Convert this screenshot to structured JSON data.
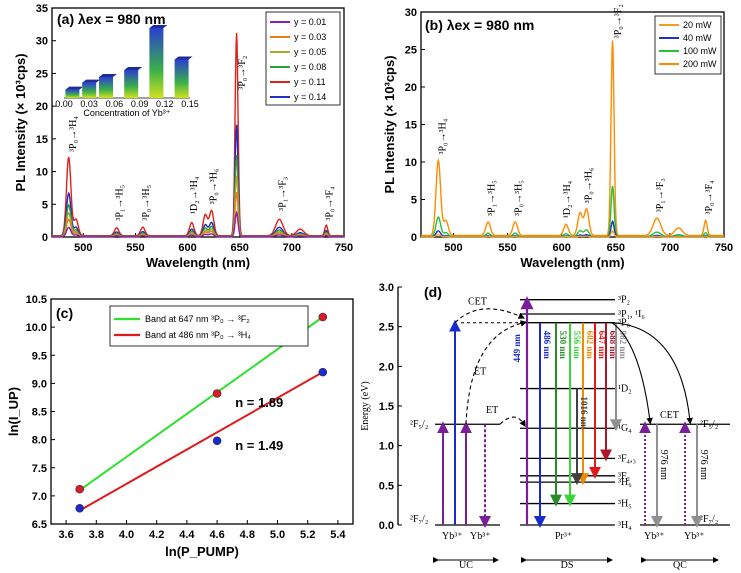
{
  "chart_data": [
    {
      "panel": "(a)",
      "type": "line",
      "title": "(a) λex = 980 nm",
      "xlabel": "Wavelength (nm)",
      "ylabel": "PL Intensity (× 10³cps)",
      "xlim": [
        470,
        750
      ],
      "ylim": [
        0,
        35
      ],
      "xticks": [
        500,
        550,
        600,
        650,
        700,
        750
      ],
      "yticks": [
        0,
        5,
        10,
        15,
        20,
        25,
        30,
        35
      ],
      "series": [
        {
          "name": "y = 0.01",
          "color": "#8b1fa9",
          "scale": 0.12
        },
        {
          "name": "y = 0.03",
          "color": "#e57f1d",
          "scale": 0.22
        },
        {
          "name": "y = 0.05",
          "color": "#a9a92a",
          "scale": 0.3
        },
        {
          "name": "y = 0.08",
          "color": "#2f9e3a",
          "scale": 0.4
        },
        {
          "name": "y = 0.11",
          "color": "#e0221c",
          "scale": 1.0
        },
        {
          "name": "y = 0.14",
          "color": "#1f2fbf",
          "scale": 0.55
        }
      ],
      "peaks": [
        {
          "center": 486,
          "height": 12.0,
          "width": 3
        },
        {
          "center": 493,
          "height": 2.5,
          "width": 3
        },
        {
          "center": 532,
          "height": 1.2,
          "width": 3
        },
        {
          "center": 557,
          "height": 1.3,
          "width": 3
        },
        {
          "center": 604,
          "height": 2.0,
          "width": 3
        },
        {
          "center": 617,
          "height": 3.2,
          "width": 3
        },
        {
          "center": 623,
          "height": 3.8,
          "width": 3
        },
        {
          "center": 647,
          "height": 31.0,
          "width": 2
        },
        {
          "center": 688,
          "height": 2.5,
          "width": 5
        },
        {
          "center": 708,
          "height": 1.0,
          "width": 5
        },
        {
          "center": 733,
          "height": 1.6,
          "width": 2
        }
      ],
      "annotations": [
        "³P₀→³H₄",
        "³P₁→³H₅",
        "³P₀→³H₅",
        "¹D₂→³H₄",
        "³P₀→³H₆",
        "³P₀→³F₂",
        "³P₁→³F₃",
        "³P₀→³F₄"
      ],
      "inset": {
        "type": "bar",
        "xlabel": "Concentration of Yb³⁺",
        "xticks": [
          "0.00",
          "0.03",
          "0.06",
          "0.09",
          "0.12",
          "0.15"
        ],
        "categories": [
          0.01,
          0.03,
          0.05,
          0.08,
          0.11,
          0.14
        ],
        "values": [
          0.12,
          0.22,
          0.3,
          0.4,
          1.0,
          0.55
        ]
      }
    },
    {
      "panel": "(b)",
      "type": "line",
      "title": "(b) λex = 980 nm",
      "xlabel": "Wavelength (nm)",
      "ylabel": "PL Intensity (× 10³cps)",
      "xlim": [
        470,
        750
      ],
      "ylim": [
        0,
        30
      ],
      "xticks": [
        500,
        550,
        600,
        650,
        700,
        750
      ],
      "yticks": [
        0,
        5,
        10,
        15,
        20,
        25,
        30
      ],
      "series": [
        {
          "name": "20 mW",
          "color": "#f0a020",
          "scale": 0.03
        },
        {
          "name": "40 mW",
          "color": "#2030c0",
          "scale": 0.08
        },
        {
          "name": "100 mW",
          "color": "#25c23a",
          "scale": 0.26
        },
        {
          "name": "200 mW",
          "color": "#ff8c00",
          "scale": 1.0
        }
      ],
      "peaks": [
        {
          "center": 486,
          "height": 10.0,
          "width": 3
        },
        {
          "center": 493,
          "height": 2.0,
          "width": 3
        },
        {
          "center": 532,
          "height": 1.8,
          "width": 3
        },
        {
          "center": 557,
          "height": 1.8,
          "width": 3
        },
        {
          "center": 604,
          "height": 1.5,
          "width": 3
        },
        {
          "center": 617,
          "height": 3.0,
          "width": 3
        },
        {
          "center": 623,
          "height": 3.5,
          "width": 3
        },
        {
          "center": 647,
          "height": 26.0,
          "width": 2
        },
        {
          "center": 688,
          "height": 2.3,
          "width": 5
        },
        {
          "center": 708,
          "height": 1.0,
          "width": 5
        },
        {
          "center": 733,
          "height": 2.0,
          "width": 2
        }
      ],
      "annotations": [
        "³P₀→³H₄",
        "³P₁→³H₅",
        "³P₀→³H₅",
        "¹D₂→³H₄",
        "³P₀→³H₆",
        "³P₀→³F₂",
        "³P₁→³F₃",
        "³P₀→³F₄"
      ]
    },
    {
      "panel": "(c)",
      "type": "scatter",
      "title": "(c)",
      "xlabel": "ln(P_PUMP)",
      "ylabel": "ln(I_UP)",
      "xlim": [
        3.5,
        5.5
      ],
      "ylim": [
        6.5,
        10.5
      ],
      "xticks": [
        "3.6",
        "3.8",
        "4.0",
        "4.2",
        "4.4",
        "4.6",
        "4.8",
        "5.0",
        "5.2",
        "5.4"
      ],
      "yticks": [
        "6.5",
        "7.0",
        "7.5",
        "8.0",
        "8.5",
        "9.0",
        "9.5",
        "10.0",
        "10.5"
      ],
      "series": [
        {
          "name": "Band at 647 nm ³P₀ → ³F₂",
          "color": "#2fe02f",
          "marker": "#d81a2a",
          "x": [
            3.69,
            4.6,
            5.3
          ],
          "y": [
            7.12,
            8.82,
            10.18
          ],
          "fit": [
            [
              3.69,
              7.1
            ],
            [
              5.3,
              10.18
            ]
          ],
          "slope_label": "n = 1.89",
          "slope_color": "#d81a2a"
        },
        {
          "name": "Band at 486 nm ³P₀ → ³H₄",
          "color": "#e01a1a",
          "marker": "#1a2acc",
          "x": [
            3.69,
            4.6,
            5.3
          ],
          "y": [
            6.78,
            7.98,
            9.2
          ],
          "fit": [
            [
              3.69,
              6.74
            ],
            [
              5.3,
              9.2
            ]
          ],
          "slope_label": "n = 1.49",
          "slope_color": "#1a2acc"
        }
      ]
    },
    {
      "panel": "(d)",
      "type": "diagram",
      "title": "(d)",
      "ylabel": "Energy (eV)",
      "yticks": [
        "0.0",
        "0.5",
        "1.0",
        "1.5",
        "2.0",
        "2.5",
        "3.0"
      ],
      "ylim": [
        0,
        3.0
      ],
      "pr_levels": [
        {
          "label": "³P₂",
          "e": 2.84
        },
        {
          "label": "³P₁, ¹I₆",
          "e": 2.66
        },
        {
          "label": "³P₀",
          "e": 2.55
        },
        {
          "label": "¹D₂",
          "e": 1.72
        },
        {
          "label": "¹G₄",
          "e": 1.22
        },
        {
          "label": "³F₄,₃",
          "e": 0.84
        },
        {
          "label": "³F₂",
          "e": 0.62
        },
        {
          "label": "³H₆",
          "e": 0.54
        },
        {
          "label": "³H₅",
          "e": 0.27
        },
        {
          "label": "³H₄",
          "e": 0.0
        }
      ],
      "yb_levels": {
        "upper": "²F₅/₂",
        "lower": "²F₇/₂",
        "e_upper": 1.27
      },
      "emissions": [
        {
          "label": "486 nm",
          "color": "#1a2acc",
          "to": 0.0
        },
        {
          "label": "530 nm",
          "color": "#2a8a2a",
          "to": 0.27
        },
        {
          "label": "556 nm",
          "color": "#39d439",
          "to": 0.27
        },
        {
          "label": "602 nm",
          "color": "#f08a00",
          "to": 0.54
        },
        {
          "label": "647 nm",
          "color": "#e01a1a",
          "to": 0.62
        },
        {
          "label": "688 nm",
          "color": "#b0142a",
          "to": 0.84
        },
        {
          "label": "982 nm",
          "color": "#909090",
          "to": 1.22
        },
        {
          "label": "1016 nm",
          "color": "#404040",
          "to": 0.54
        }
      ],
      "labels": {
        "cet1": "CET",
        "et1": "ET",
        "et2": "ET",
        "cet2": "CET",
        "pump": "449 nm",
        "yb": "Yb³⁺",
        "pr": "Pr³⁺",
        "qc_nm": "976 nm",
        "uc": "UC",
        "ds": "DS",
        "qc": "QC"
      }
    }
  ]
}
